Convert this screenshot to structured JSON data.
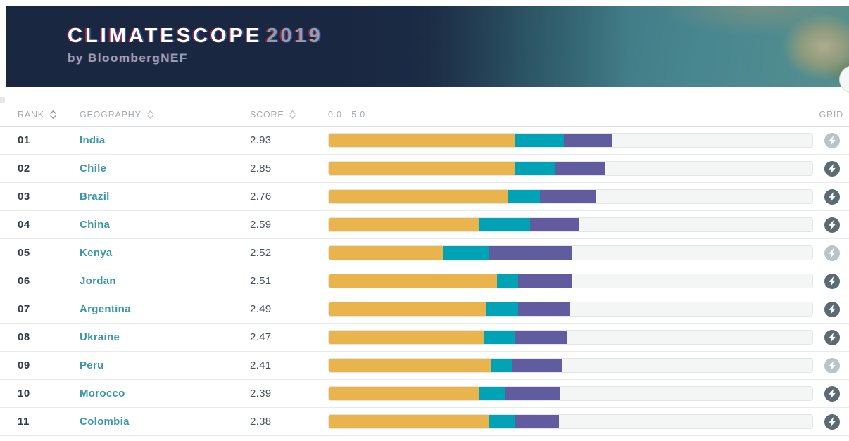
{
  "header": {
    "title": "CLIMATESCOPE",
    "year": "2019",
    "subtitle": "by BloombergNEF"
  },
  "colors": {
    "banner_navy": "#1A2741",
    "accent_teal": "#3E96AA",
    "bar_orange": "#E9B44C",
    "bar_teal": "#00A3B5",
    "bar_purple": "#615C9F",
    "bar_track": "#F4F5F5",
    "grid_active": "#5A6B73",
    "grid_inactive": "#B9C3C9"
  },
  "table": {
    "columns": {
      "rank": "RANK",
      "geography": "GEOGRAPHY",
      "score": "SCORE",
      "scale": "0.0 - 5.0",
      "grid": "GRID"
    },
    "scale_min": 0.0,
    "scale_max": 5.0,
    "rows": [
      {
        "rank": "01",
        "geography": "India",
        "score": "2.93",
        "segments": {
          "orange": 1.92,
          "teal": 0.51,
          "purple": 0.5
        },
        "grid_active": false
      },
      {
        "rank": "02",
        "geography": "Chile",
        "score": "2.85",
        "segments": {
          "orange": 1.92,
          "teal": 0.42,
          "purple": 0.51
        },
        "grid_active": true
      },
      {
        "rank": "03",
        "geography": "Brazil",
        "score": "2.76",
        "segments": {
          "orange": 1.85,
          "teal": 0.33,
          "purple": 0.58
        },
        "grid_active": true
      },
      {
        "rank": "04",
        "geography": "China",
        "score": "2.59",
        "segments": {
          "orange": 1.55,
          "teal": 0.53,
          "purple": 0.51
        },
        "grid_active": true
      },
      {
        "rank": "05",
        "geography": "Kenya",
        "score": "2.52",
        "segments": {
          "orange": 1.18,
          "teal": 0.47,
          "purple": 0.87
        },
        "grid_active": false
      },
      {
        "rank": "06",
        "geography": "Jordan",
        "score": "2.51",
        "segments": {
          "orange": 1.74,
          "teal": 0.22,
          "purple": 0.55
        },
        "grid_active": true
      },
      {
        "rank": "07",
        "geography": "Argentina",
        "score": "2.49",
        "segments": {
          "orange": 1.62,
          "teal": 0.34,
          "purple": 0.53
        },
        "grid_active": true
      },
      {
        "rank": "08",
        "geography": "Ukraine",
        "score": "2.47",
        "segments": {
          "orange": 1.61,
          "teal": 0.32,
          "purple": 0.54
        },
        "grid_active": true
      },
      {
        "rank": "09",
        "geography": "Peru",
        "score": "2.41",
        "segments": {
          "orange": 1.68,
          "teal": 0.22,
          "purple": 0.51
        },
        "grid_active": false
      },
      {
        "rank": "10",
        "geography": "Morocco",
        "score": "2.39",
        "segments": {
          "orange": 1.56,
          "teal": 0.26,
          "purple": 0.57
        },
        "grid_active": true
      },
      {
        "rank": "11",
        "geography": "Colombia",
        "score": "2.38",
        "segments": {
          "orange": 1.65,
          "teal": 0.27,
          "purple": 0.46
        },
        "grid_active": true
      }
    ]
  }
}
